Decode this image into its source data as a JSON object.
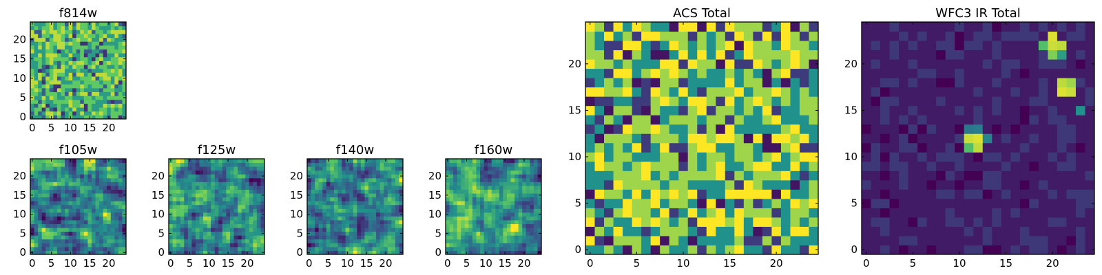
{
  "colormap": [
    "#440154",
    "#3b528b",
    "#21918c",
    "#5ec962",
    "#fde725"
  ],
  "chart_data": [
    {
      "id": "f814w",
      "type": "heatmap",
      "title": "f814w",
      "grid_size": 25,
      "seed": 11,
      "style": "noise",
      "levels": [
        0.15,
        0.3,
        0.55,
        0.75,
        0.9
      ],
      "x_ticks": [
        0,
        5,
        10,
        15,
        20
      ],
      "y_ticks": [
        0,
        5,
        10,
        15,
        20
      ]
    },
    {
      "id": "f105w",
      "type": "heatmap",
      "title": "f105w",
      "grid_size": 25,
      "seed": 23,
      "style": "smooth",
      "x_ticks": [
        0,
        5,
        10,
        15,
        20
      ],
      "y_ticks": [
        0,
        5,
        10,
        15,
        20
      ]
    },
    {
      "id": "f125w",
      "type": "heatmap",
      "title": "f125w",
      "grid_size": 25,
      "seed": 37,
      "style": "smooth",
      "x_ticks": [
        0,
        5,
        10,
        15,
        20
      ],
      "y_ticks": [
        0,
        5,
        10,
        15,
        20
      ]
    },
    {
      "id": "f140w",
      "type": "heatmap",
      "title": "f140w",
      "grid_size": 25,
      "seed": 41,
      "style": "smooth",
      "x_ticks": [
        0,
        5,
        10,
        15,
        20
      ],
      "y_ticks": [
        0,
        5,
        10,
        15,
        20
      ]
    },
    {
      "id": "f160w",
      "type": "heatmap",
      "title": "f160w",
      "grid_size": 25,
      "seed": 53,
      "style": "smooth",
      "x_ticks": [
        0,
        5,
        10,
        15,
        20
      ],
      "y_ticks": [
        0,
        5,
        10,
        15,
        20
      ]
    },
    {
      "id": "acs_total",
      "type": "heatmap",
      "title": "ACS Total",
      "grid_size": 25,
      "seed": 67,
      "style": "noise",
      "levels": [
        0.06,
        0.18,
        0.5,
        0.85,
        1.0
      ],
      "x_ticks": [
        0,
        5,
        10,
        15,
        20
      ],
      "y_ticks": [
        0,
        5,
        10,
        15,
        20
      ]
    },
    {
      "id": "wfc3_ir_total",
      "type": "heatmap",
      "title": "WFC3 IR Total",
      "grid_size": 25,
      "seed": 79,
      "style": "sparse",
      "bright_sources": [
        {
          "x": 20,
          "y": 23,
          "v": 0.95
        },
        {
          "x": 20,
          "y": 22,
          "v": 0.92
        },
        {
          "x": 21,
          "y": 22,
          "v": 0.9
        },
        {
          "x": 19,
          "y": 22,
          "v": 0.7
        },
        {
          "x": 20,
          "y": 21,
          "v": 0.8
        },
        {
          "x": 21,
          "y": 21,
          "v": 0.55
        },
        {
          "x": 21,
          "y": 18,
          "v": 0.9
        },
        {
          "x": 22,
          "y": 18,
          "v": 0.85
        },
        {
          "x": 21,
          "y": 17,
          "v": 0.95
        },
        {
          "x": 22,
          "y": 17,
          "v": 0.92
        },
        {
          "x": 23,
          "y": 15,
          "v": 0.5
        },
        {
          "x": 11,
          "y": 12,
          "v": 0.92
        },
        {
          "x": 12,
          "y": 12,
          "v": 0.95
        },
        {
          "x": 13,
          "y": 12,
          "v": 0.45
        },
        {
          "x": 11,
          "y": 11,
          "v": 0.7
        },
        {
          "x": 12,
          "y": 11,
          "v": 0.9
        },
        {
          "x": 11,
          "y": 13,
          "v": 0.4
        },
        {
          "x": 12,
          "y": 13,
          "v": 0.42
        }
      ],
      "x_ticks": [
        0,
        5,
        10,
        15,
        20
      ],
      "y_ticks": [
        0,
        5,
        10,
        15,
        20
      ]
    }
  ]
}
